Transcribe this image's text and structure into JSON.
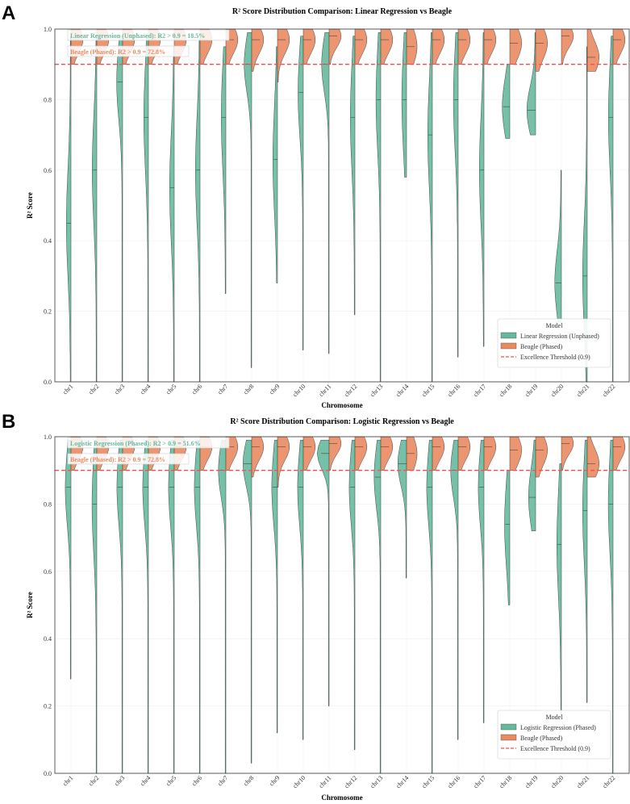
{
  "colors": {
    "model": "#66b99c",
    "beagle": "#e98a62",
    "threshold": "#ff4d4d"
  },
  "chart_data": [
    {
      "panel_label": "A",
      "type": "violin",
      "title": "R² Score Distribution Comparison: Linear Regression vs Beagle",
      "xlabel": "Chromosome",
      "ylabel": "R² Score",
      "ylim": [
        0,
        1.0
      ],
      "yticks": [
        "0.0",
        "0.2",
        "0.4",
        "0.6",
        "0.8",
        "1.0"
      ],
      "categories": [
        "chr1",
        "chr2",
        "chr3",
        "chr4",
        "chr5",
        "chr6",
        "chr7",
        "chr8",
        "chr9",
        "chr10",
        "chr11",
        "chr12",
        "chr13",
        "chr14",
        "chr15",
        "chr16",
        "chr17",
        "chr18",
        "chr19",
        "chr20",
        "chr21",
        "chr22"
      ],
      "threshold": 0.9,
      "annotations": [
        "Linear Regression (Unphased): R2 > 0.9 = 18.5%",
        "Beagle (Phased): R2 > 0.9 = 72.8%"
      ],
      "legend": {
        "title": "Model",
        "placement": "lower-right",
        "entries": [
          "Linear Regression (Unphased)",
          "Beagle (Phased)",
          "Excellence Threshold (0.9)"
        ]
      },
      "series": [
        {
          "name": "Linear Regression (Unphased)",
          "side": "left",
          "min": [
            0,
            0,
            0,
            0,
            0,
            0,
            0.25,
            0.04,
            0.28,
            0.09,
            0.08,
            0.19,
            0,
            0.58,
            0,
            0.07,
            0.1,
            0.69,
            0.7,
            0.17,
            0,
            0
          ],
          "median": [
            0.45,
            0.6,
            0.85,
            0.75,
            0.55,
            0.6,
            0.75,
            0.9,
            0.63,
            0.82,
            0.9,
            0.75,
            0.8,
            0.8,
            0.7,
            0.8,
            0.6,
            0.78,
            0.77,
            0.28,
            0.3,
            0.75
          ],
          "max": [
            0.98,
            0.98,
            0.98,
            0.98,
            0.95,
            0.97,
            0.95,
            0.99,
            0.95,
            0.98,
            0.99,
            0.98,
            0.99,
            0.99,
            0.99,
            0.99,
            0.99,
            0.9,
            0.99,
            0.6,
            0.95,
            0.98
          ]
        },
        {
          "name": "Beagle (Phased)",
          "side": "right",
          "min": [
            0.9,
            0.9,
            0.9,
            0.9,
            0.9,
            0.9,
            0.9,
            0.88,
            0.85,
            0.9,
            0.9,
            0.9,
            0.9,
            0.9,
            0.9,
            0.9,
            0.9,
            0.9,
            0.88,
            0.9,
            0.88,
            0.9
          ],
          "median": [
            0.97,
            0.97,
            0.97,
            0.97,
            0.97,
            0.97,
            0.97,
            0.97,
            0.97,
            0.97,
            0.98,
            0.97,
            0.97,
            0.95,
            0.97,
            0.97,
            0.97,
            0.96,
            0.96,
            0.98,
            0.92,
            0.97
          ],
          "max": [
            1,
            1,
            1,
            1,
            1,
            1,
            1,
            1,
            1,
            1,
            1,
            1,
            1,
            1,
            1,
            1,
            1,
            1,
            1,
            1,
            1,
            1
          ]
        }
      ]
    },
    {
      "panel_label": "B",
      "type": "violin",
      "title": "R² Score Distribution Comparison: Logistic Regression vs Beagle",
      "xlabel": "Chromosome",
      "ylabel": "R² Score",
      "ylim": [
        0,
        1.0
      ],
      "yticks": [
        "0.0",
        "0.2",
        "0.4",
        "0.6",
        "0.8",
        "1.0"
      ],
      "categories": [
        "chr1",
        "chr2",
        "chr3",
        "chr4",
        "chr5",
        "chr6",
        "chr7",
        "chr8",
        "chr9",
        "chr10",
        "chr11",
        "chr12",
        "chr13",
        "chr14",
        "chr15",
        "chr16",
        "chr17",
        "chr18",
        "chr19",
        "chr20",
        "chr21",
        "chr22"
      ],
      "threshold": 0.9,
      "annotations": [
        "Logistic Regression (Phased): R2 > 0.9 = 51.6%",
        "Beagle (Phased): R2 > 0.9 = 72.8%"
      ],
      "legend": {
        "title": "Model",
        "placement": "lower-right",
        "entries": [
          "Logistic Regression (Phased)",
          "Beagle (Phased)",
          "Excellence Threshold (0.9)"
        ]
      },
      "series": [
        {
          "name": "Logistic Regression (Phased)",
          "side": "left",
          "min": [
            0.28,
            0,
            0,
            0,
            0,
            0,
            0,
            0.03,
            0.12,
            0.1,
            0.2,
            0.07,
            0,
            0.58,
            0,
            0.1,
            0.15,
            0.5,
            0.72,
            0.17,
            0.21,
            0
          ],
          "median": [
            0.85,
            0.8,
            0.85,
            0.85,
            0.85,
            0.85,
            0.9,
            0.92,
            0.85,
            0.85,
            0.95,
            0.85,
            0.88,
            0.92,
            0.85,
            0.9,
            0.85,
            0.74,
            0.82,
            0.68,
            0.78,
            0.8
          ],
          "max": [
            0.99,
            0.99,
            0.99,
            0.99,
            0.99,
            0.99,
            0.99,
            0.99,
            0.99,
            0.99,
            0.99,
            0.99,
            0.99,
            0.99,
            0.99,
            0.99,
            0.99,
            0.9,
            0.99,
            0.92,
            0.99,
            0.99
          ]
        },
        {
          "name": "Beagle (Phased)",
          "side": "right",
          "min": [
            0.9,
            0.9,
            0.9,
            0.9,
            0.9,
            0.9,
            0.9,
            0.88,
            0.85,
            0.9,
            0.9,
            0.9,
            0.9,
            0.9,
            0.9,
            0.9,
            0.9,
            0.9,
            0.88,
            0.9,
            0.88,
            0.9
          ],
          "median": [
            0.97,
            0.97,
            0.97,
            0.97,
            0.97,
            0.97,
            0.97,
            0.97,
            0.97,
            0.97,
            0.98,
            0.97,
            0.97,
            0.95,
            0.97,
            0.97,
            0.97,
            0.96,
            0.96,
            0.98,
            0.92,
            0.97
          ],
          "max": [
            1,
            1,
            1,
            1,
            1,
            1,
            1,
            1,
            1,
            1,
            1,
            1,
            1,
            1,
            1,
            1,
            1,
            1,
            1,
            1,
            1,
            1
          ]
        }
      ]
    }
  ]
}
